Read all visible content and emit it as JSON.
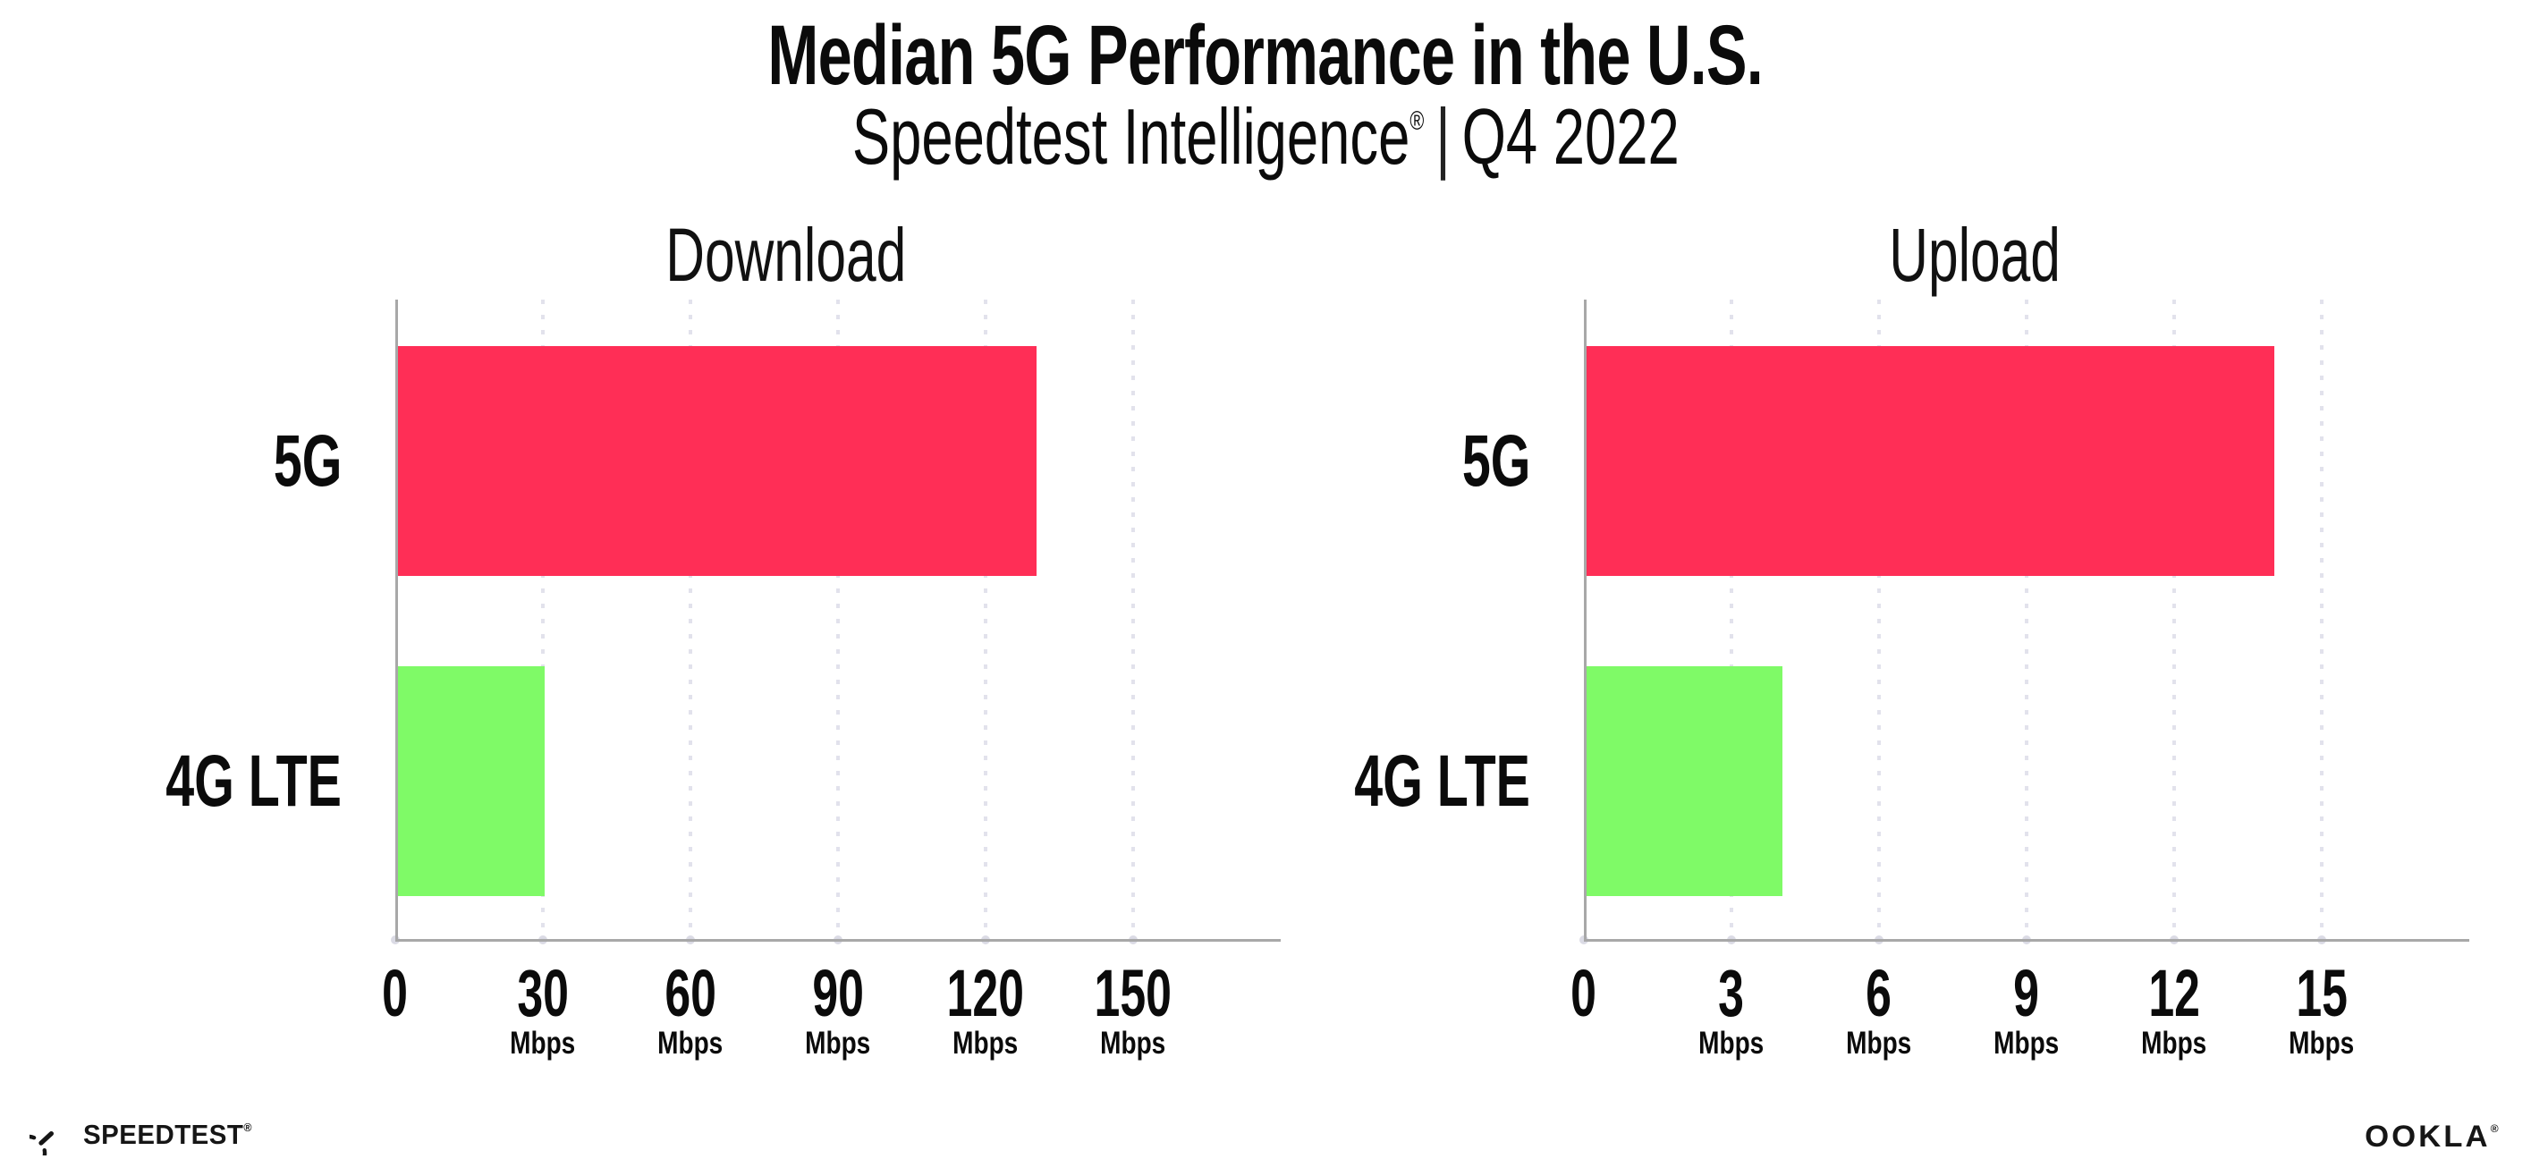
{
  "header": {
    "title": "Median 5G Performance in the U.S.",
    "subtitle_brand": "Speedtest Intelligence",
    "subtitle_mark": "®",
    "subtitle_separator": "|",
    "subtitle_period": "Q4 2022"
  },
  "colors": {
    "bar_5g": "#FF2E56",
    "bar_4g_lte": "#7FFA67",
    "axis": "#A8A8A8",
    "gridline": "#E2E2EC",
    "text": "#0B0B0B"
  },
  "chart_data": [
    {
      "type": "bar",
      "orientation": "horizontal",
      "title": "Download",
      "categories": [
        "5G",
        "4G LTE"
      ],
      "values": [
        130,
        30
      ],
      "unit": "Mbps",
      "xlim": [
        0,
        180
      ],
      "grid": "vertical-dotted",
      "legend": "none",
      "bar_colors": [
        "#FF2E56",
        "#7FFA67"
      ],
      "ticks": [
        {
          "value": 0,
          "label": "0",
          "unit": ""
        },
        {
          "value": 30,
          "label": "30",
          "unit": "Mbps"
        },
        {
          "value": 60,
          "label": "60",
          "unit": "Mbps"
        },
        {
          "value": 90,
          "label": "90",
          "unit": "Mbps"
        },
        {
          "value": 120,
          "label": "120",
          "unit": "Mbps"
        },
        {
          "value": 150,
          "label": "150",
          "unit": "Mbps"
        }
      ]
    },
    {
      "type": "bar",
      "orientation": "horizontal",
      "title": "Upload",
      "categories": [
        "5G",
        "4G LTE"
      ],
      "values": [
        14,
        4
      ],
      "unit": "Mbps",
      "xlim": [
        0,
        18
      ],
      "grid": "vertical-dotted",
      "legend": "none",
      "bar_colors": [
        "#FF2E56",
        "#7FFA67"
      ],
      "ticks": [
        {
          "value": 0,
          "label": "0",
          "unit": ""
        },
        {
          "value": 3,
          "label": "3",
          "unit": "Mbps"
        },
        {
          "value": 6,
          "label": "6",
          "unit": "Mbps"
        },
        {
          "value": 9,
          "label": "9",
          "unit": "Mbps"
        },
        {
          "value": 12,
          "label": "12",
          "unit": "Mbps"
        },
        {
          "value": 15,
          "label": "15",
          "unit": "Mbps"
        }
      ]
    }
  ],
  "footer": {
    "speedtest_label": "SPEEDTEST",
    "speedtest_mark": "®",
    "ookla_label": "OOKLA",
    "ookla_mark": "®"
  }
}
